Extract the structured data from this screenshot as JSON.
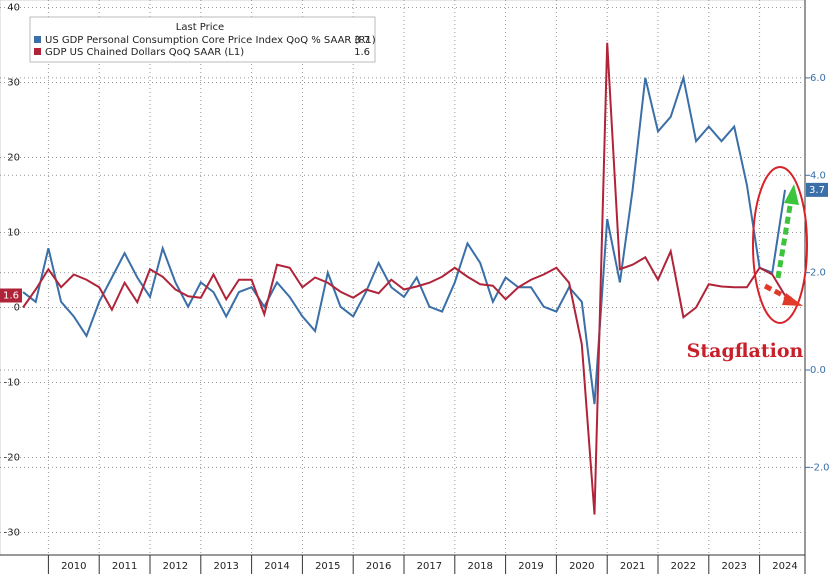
{
  "chart_data": {
    "type": "line",
    "legend_title": "Last Price",
    "annotations": [
      "Stagflation"
    ],
    "categories": [
      null,
      null,
      "2010",
      null,
      null,
      null,
      "2011",
      null,
      null,
      null,
      "2012",
      null,
      null,
      null,
      "2013",
      null,
      null,
      null,
      "2014",
      null,
      null,
      null,
      "2015",
      null,
      null,
      null,
      "2016",
      null,
      null,
      null,
      "2017",
      null,
      null,
      null,
      "2018",
      null,
      null,
      null,
      "2019",
      null,
      null,
      null,
      "2020",
      null,
      null,
      null,
      "2021",
      null,
      null,
      null,
      "2022",
      null,
      null,
      null,
      "2023",
      null,
      null,
      null,
      "2024",
      null,
      null
    ],
    "ylim": [
      -33,
      41
    ],
    "yticks": [
      -30,
      -20,
      -10,
      0,
      10,
      20,
      30,
      40
    ],
    "y2lim": [
      -3.8,
      7.6
    ],
    "y2ticks": [
      {
        "value": -2,
        "label": "-2.0"
      },
      {
        "value": 0,
        "label": "0.0"
      },
      {
        "value": 2,
        "label": "2.0"
      },
      {
        "value": 4,
        "label": "4.0"
      },
      {
        "value": 6,
        "label": "6.0"
      }
    ],
    "grid": true,
    "series": [
      {
        "name": "US GDP Personal Consumption Core Price Index QoQ % SAAR (R1)",
        "color": "#3a6fa8",
        "axis": "y2",
        "values": [
          1.6,
          1.4,
          2.5,
          1.4,
          1.1,
          0.7,
          1.4,
          1.9,
          2.4,
          1.9,
          1.5,
          2.5,
          1.8,
          1.3,
          1.8,
          1.6,
          1.1,
          1.6,
          1.7,
          1.3,
          1.8,
          1.5,
          1.1,
          0.8,
          2.0,
          1.3,
          1.1,
          1.6,
          2.2,
          1.7,
          1.5,
          1.9,
          1.3,
          1.2,
          1.8,
          2.6,
          2.2,
          1.4,
          1.9,
          1.7,
          1.7,
          1.3,
          1.2,
          1.7,
          1.4,
          -0.7,
          3.1,
          1.8,
          3.7,
          6.0,
          4.9,
          5.2,
          6.0,
          4.7,
          5.0,
          4.7,
          5.0,
          3.8,
          2.1,
          2.0,
          3.7
        ]
      },
      {
        "name": "GDP US Chained Dollars QoQ SAAR (L1)",
        "color": "#b0243a",
        "values": [
          0.0,
          2.4,
          5.1,
          2.7,
          4.4,
          3.7,
          2.7,
          -0.3,
          3.3,
          0.7,
          5.1,
          4.1,
          2.4,
          1.5,
          1.3,
          4.4,
          1.1,
          3.7,
          3.7,
          -0.9,
          5.7,
          5.3,
          2.7,
          4.0,
          3.3,
          2.1,
          1.3,
          2.4,
          1.9,
          3.7,
          2.4,
          2.8,
          3.3,
          4.1,
          5.3,
          4.1,
          3.1,
          2.9,
          1.1,
          2.7,
          3.7,
          4.4,
          5.3,
          3.3,
          -4.9,
          -27.6,
          35.3,
          5.1,
          5.7,
          6.7,
          3.7,
          7.5,
          -1.3,
          0.0,
          3.1,
          2.8,
          2.7,
          2.7,
          5.3,
          4.4,
          1.6
        ]
      }
    ]
  }
}
